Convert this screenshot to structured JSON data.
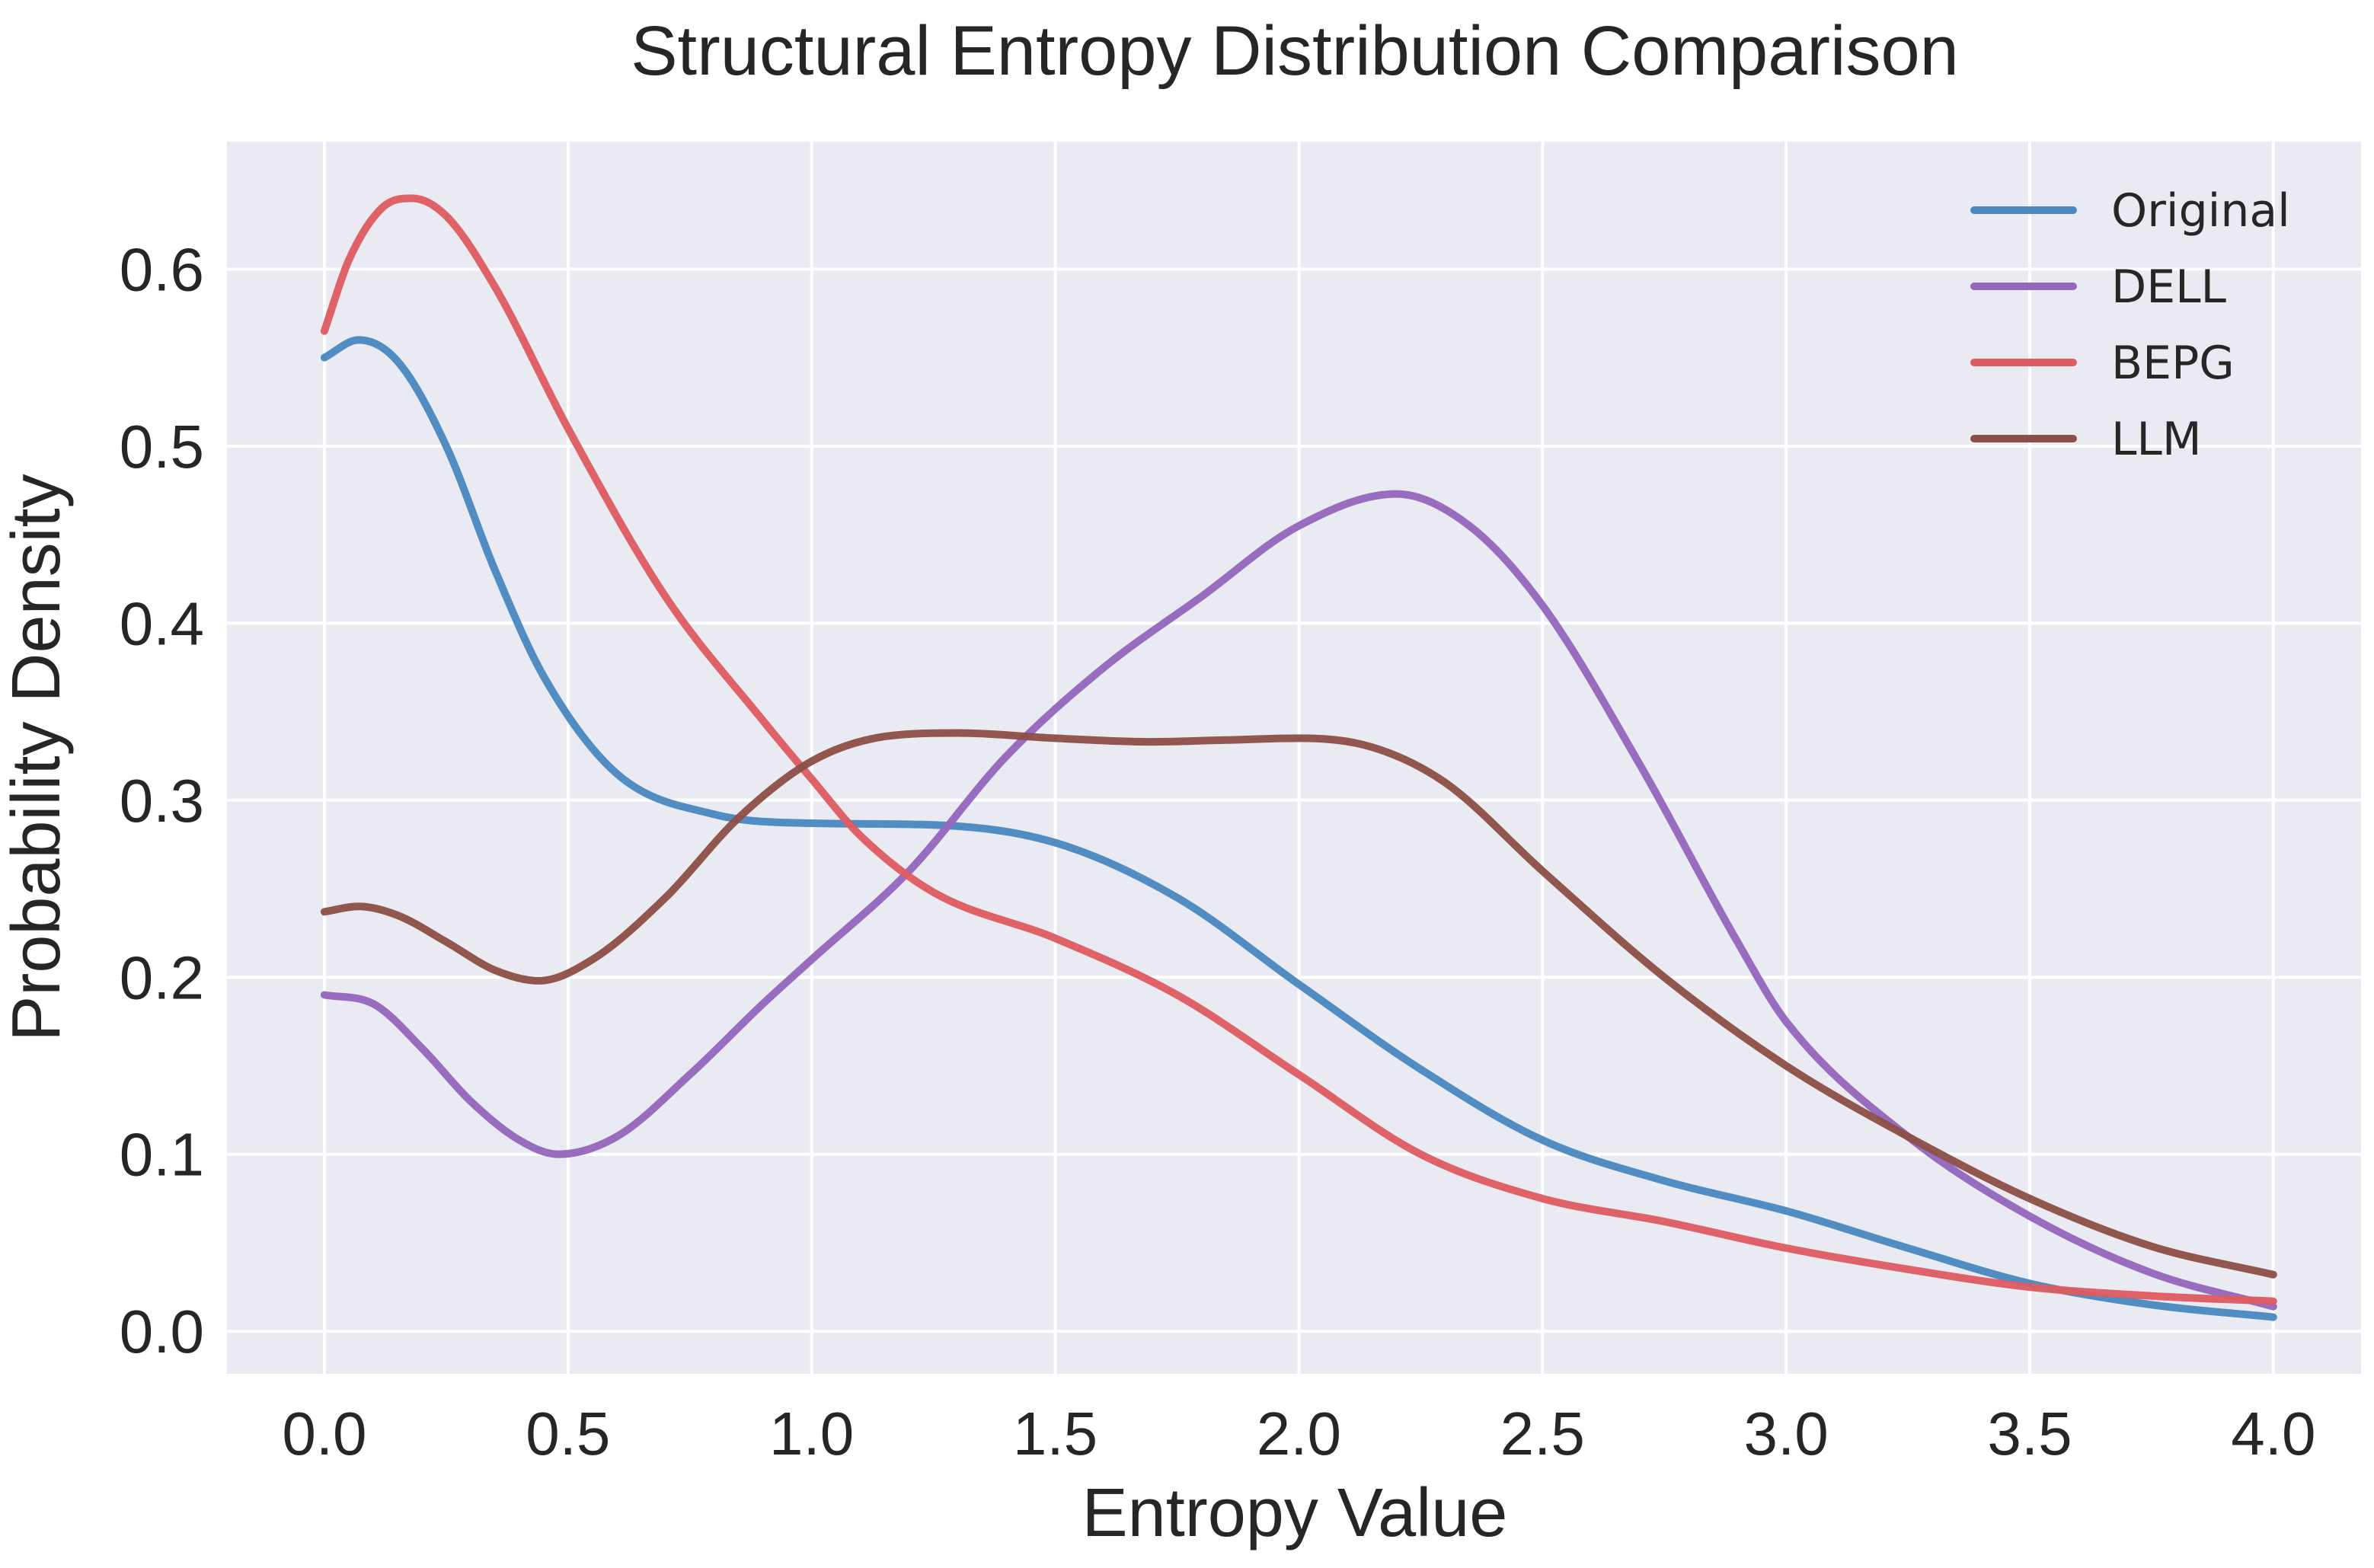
{
  "chart_data": {
    "type": "line",
    "title": "Structural Entropy Distribution Comparison",
    "xlabel": "Entropy Value",
    "ylabel": "Probability Density",
    "xlim": [
      -0.2,
      4.18
    ],
    "ylim": [
      -0.024,
      0.672
    ],
    "xticks": [
      0.0,
      0.5,
      1.0,
      1.5,
      2.0,
      2.5,
      3.0,
      3.5,
      4.0
    ],
    "xtick_labels": [
      "0.0",
      "0.5",
      "1.0",
      "1.5",
      "2.0",
      "2.5",
      "3.0",
      "3.5",
      "4.0"
    ],
    "yticks": [
      0.0,
      0.1,
      0.2,
      0.3,
      0.4,
      0.5,
      0.6
    ],
    "ytick_labels": [
      "0.0",
      "0.1",
      "0.2",
      "0.3",
      "0.4",
      "0.5",
      "0.6"
    ],
    "grid": true,
    "legend_position": "top-right",
    "background_color": "#eaeaf2",
    "series": [
      {
        "name": "Original",
        "color": "#4a88bf",
        "x": [
          0.0,
          0.07,
          0.15,
          0.25,
          0.35,
          0.45,
          0.6,
          0.8,
          1.0,
          1.25,
          1.5,
          1.75,
          2.0,
          2.25,
          2.5,
          2.75,
          3.0,
          3.25,
          3.5,
          3.75,
          4.0
        ],
        "y": [
          0.55,
          0.56,
          0.548,
          0.5,
          0.43,
          0.37,
          0.315,
          0.292,
          0.287,
          0.286,
          0.276,
          0.245,
          0.196,
          0.148,
          0.108,
          0.085,
          0.068,
          0.047,
          0.027,
          0.015,
          0.008
        ]
      },
      {
        "name": "DELL",
        "color": "#9467bd",
        "x": [
          0.0,
          0.1,
          0.2,
          0.3,
          0.4,
          0.48,
          0.6,
          0.75,
          0.9,
          1.0,
          1.2,
          1.4,
          1.6,
          1.8,
          2.0,
          2.2,
          2.35,
          2.5,
          2.7,
          2.9,
          3.0,
          3.25,
          3.5,
          3.75,
          4.0
        ],
        "y": [
          0.19,
          0.185,
          0.16,
          0.13,
          0.108,
          0.1,
          0.11,
          0.145,
          0.185,
          0.21,
          0.26,
          0.325,
          0.375,
          0.415,
          0.455,
          0.473,
          0.455,
          0.41,
          0.32,
          0.22,
          0.175,
          0.11,
          0.065,
          0.033,
          0.014
        ]
      },
      {
        "name": "BEPG",
        "color": "#dd5c61",
        "x": [
          0.0,
          0.05,
          0.12,
          0.18,
          0.25,
          0.35,
          0.5,
          0.7,
          0.9,
          1.0,
          1.1,
          1.25,
          1.5,
          1.75,
          2.0,
          2.25,
          2.5,
          2.75,
          3.0,
          3.25,
          3.5,
          3.75,
          4.0
        ],
        "y": [
          0.565,
          0.605,
          0.635,
          0.64,
          0.63,
          0.59,
          0.51,
          0.415,
          0.345,
          0.312,
          0.28,
          0.248,
          0.222,
          0.19,
          0.145,
          0.1,
          0.075,
          0.062,
          0.047,
          0.035,
          0.025,
          0.02,
          0.017
        ]
      },
      {
        "name": "LLM",
        "color": "#8c4f47",
        "x": [
          0.0,
          0.07,
          0.15,
          0.25,
          0.35,
          0.44,
          0.55,
          0.7,
          0.85,
          1.0,
          1.15,
          1.3,
          1.5,
          1.7,
          1.85,
          2.0,
          2.15,
          2.3,
          2.5,
          2.75,
          3.0,
          3.25,
          3.5,
          3.75,
          4.0
        ],
        "y": [
          0.237,
          0.24,
          0.235,
          0.22,
          0.204,
          0.198,
          0.21,
          0.245,
          0.29,
          0.322,
          0.336,
          0.338,
          0.335,
          0.333,
          0.334,
          0.335,
          0.33,
          0.31,
          0.26,
          0.2,
          0.15,
          0.11,
          0.075,
          0.048,
          0.032
        ]
      }
    ]
  }
}
